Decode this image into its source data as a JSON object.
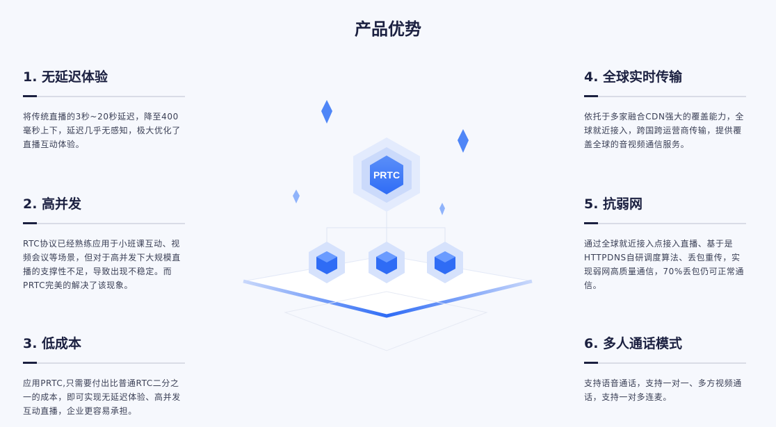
{
  "page_title": "产品优势",
  "features": [
    {
      "title": "1. 无延迟体验",
      "desc": "将传统直播的3秒~20秒延迟，降至400毫秒上下，延迟几乎无感知，极大优化了直播互动体验。"
    },
    {
      "title": "2. 高并发",
      "desc": "RTC协议已经熟练应用于小班课互动、视频会议等场景，但对于高并发下大规模直播的支撑性不足，导致出现不稳定。而PRTC完美的解决了该现象。"
    },
    {
      "title": "3. 低成本",
      "desc": "应用PRTC,只需要付出比普通RTC二分之一的成本，即可实现无延迟体验、高并发互动直播，企业更容易承担。"
    },
    {
      "title": "4. 全球实时传输",
      "desc": "依托于多家融合CDN强大的覆盖能力，全球就近接入，跨国跨运营商传输，提供覆盖全球的音视频通信服务。"
    },
    {
      "title": "5. 抗弱网",
      "desc": "通过全球就近接入点接入直播、基于是HTTPDNS自研调度算法、丢包重传，实现弱网高质量通信，70%丢包仍可正常通信。"
    },
    {
      "title": "6. 多人通话模式",
      "desc": "支持语音通话，支持一对一、多方视频通话，支持一对多连麦。"
    }
  ],
  "illustration": {
    "label": "PRTC",
    "accent": "#2f6cf5"
  }
}
